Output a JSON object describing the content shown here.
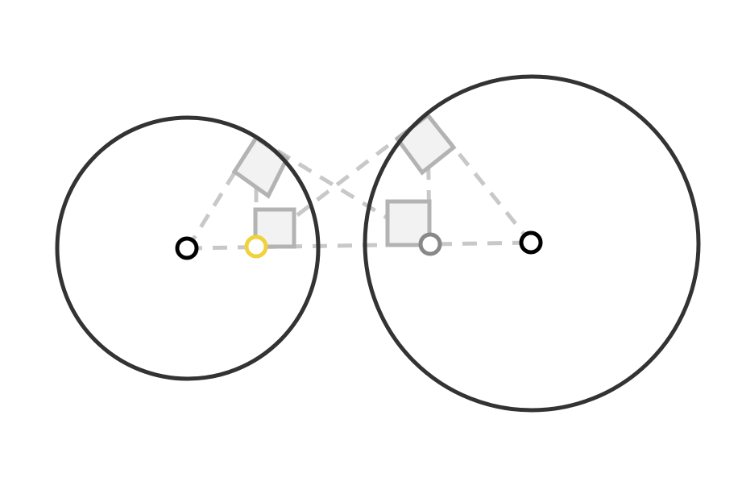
{
  "diagram": {
    "description_items": [],
    "colors": {
      "background": "#ffffff",
      "circle_outline": "#333333",
      "construction_line": "#c8c8c8",
      "right_angle_fill": "#f2f2f2",
      "right_angle_stroke": "#b3b3b3",
      "center_point": "#000000",
      "highlight_point": "#f0d23c",
      "secondary_point": "#888888"
    },
    "elements": {
      "left_circle": "circle",
      "right_circle": "circle",
      "left_center": "point",
      "right_center": "point",
      "highlight_point": "point",
      "secondary_point": "point",
      "right_angle_markers": 4
    }
  }
}
